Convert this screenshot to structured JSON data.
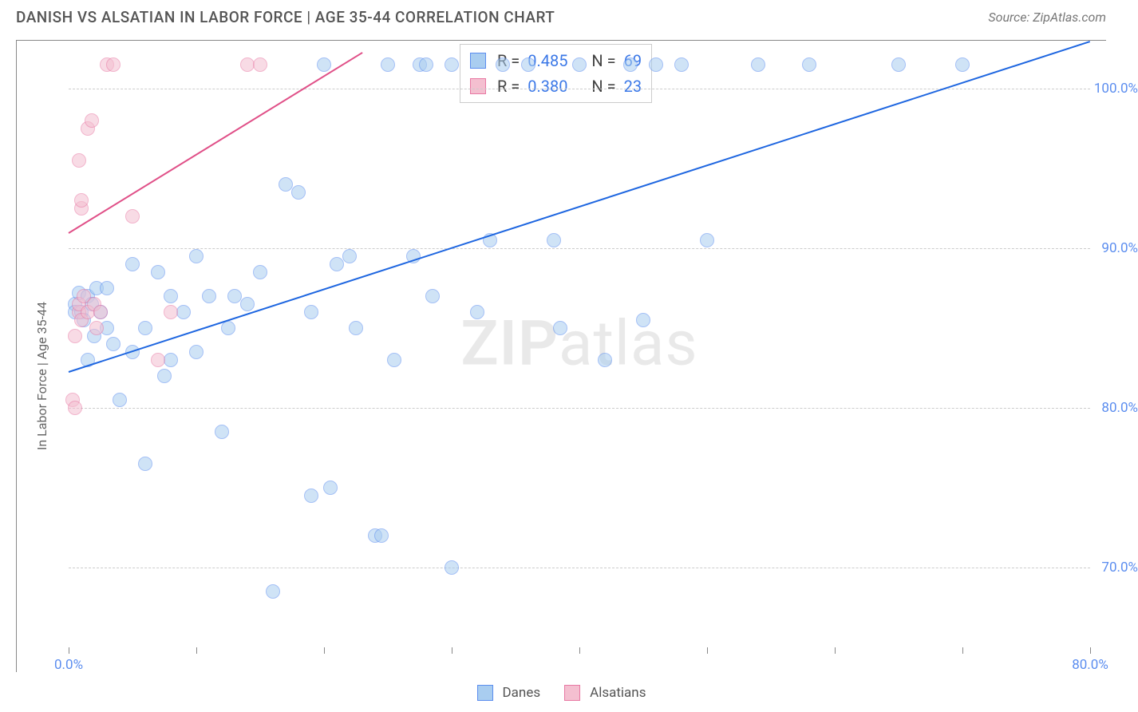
{
  "header": {
    "title": "DANISH VS ALSATIAN IN LABOR FORCE | AGE 35-44 CORRELATION CHART",
    "source": "Source: ZipAtlas.com"
  },
  "chart": {
    "type": "scatter",
    "xlim": [
      0,
      80
    ],
    "ylim": [
      65,
      103
    ],
    "x_ticks": [
      0,
      10,
      20,
      30,
      40,
      50,
      60,
      70,
      80
    ],
    "x_tick_labels": {
      "0": "0.0%",
      "80": "80.0%"
    },
    "y_ticks": [
      70,
      80,
      90,
      100
    ],
    "y_tick_labels": {
      "70": "70.0%",
      "80": "80.0%",
      "90": "90.0%",
      "100": "100.0%"
    },
    "ylabel": "In Labor Force | Age 35-44",
    "background_color": "#ffffff",
    "grid_color": "#cccccc",
    "watermark": "ZIPatlas",
    "series": [
      {
        "name": "Danes",
        "color_fill": "#a9cdf0",
        "color_stroke": "#5b8def",
        "trend_color": "#1e66e0",
        "R": "0.485",
        "N": "69",
        "marker_radius": 9,
        "marker_opacity": 0.55,
        "trend": {
          "x1": 0,
          "y1": 82.3,
          "x2": 80,
          "y2": 103
        },
        "points": [
          [
            0.5,
            86.5
          ],
          [
            0.5,
            86.0
          ],
          [
            0.8,
            87.2
          ],
          [
            1.0,
            86.0
          ],
          [
            1.2,
            85.5
          ],
          [
            1.5,
            87.0
          ],
          [
            1.5,
            83.0
          ],
          [
            1.8,
            86.5
          ],
          [
            2.0,
            84.5
          ],
          [
            2.2,
            87.5
          ],
          [
            2.5,
            86.0
          ],
          [
            3.0,
            87.5
          ],
          [
            3.0,
            85.0
          ],
          [
            3.5,
            84.0
          ],
          [
            4.0,
            80.5
          ],
          [
            5.0,
            89.0
          ],
          [
            5.0,
            83.5
          ],
          [
            6.0,
            85.0
          ],
          [
            6.0,
            76.5
          ],
          [
            7.0,
            88.5
          ],
          [
            7.5,
            82.0
          ],
          [
            8.0,
            87.0
          ],
          [
            8.0,
            83.0
          ],
          [
            9.0,
            86.0
          ],
          [
            10.0,
            83.5
          ],
          [
            10.0,
            89.5
          ],
          [
            11.0,
            87.0
          ],
          [
            12.0,
            78.5
          ],
          [
            12.5,
            85.0
          ],
          [
            13.0,
            87.0
          ],
          [
            14.0,
            86.5
          ],
          [
            15.0,
            88.5
          ],
          [
            16.0,
            68.5
          ],
          [
            17.0,
            94.0
          ],
          [
            18.0,
            93.5
          ],
          [
            19.0,
            74.5
          ],
          [
            19.0,
            86.0
          ],
          [
            20.0,
            101.5
          ],
          [
            20.5,
            75.0
          ],
          [
            21.0,
            89.0
          ],
          [
            22.0,
            89.5
          ],
          [
            22.5,
            85.0
          ],
          [
            24.0,
            72.0
          ],
          [
            24.5,
            72.0
          ],
          [
            25.0,
            101.5
          ],
          [
            25.5,
            83.0
          ],
          [
            27.0,
            89.5
          ],
          [
            27.5,
            101.5
          ],
          [
            28.0,
            101.5
          ],
          [
            28.5,
            87.0
          ],
          [
            30.0,
            101.5
          ],
          [
            30.0,
            70.0
          ],
          [
            32.0,
            86.0
          ],
          [
            33.0,
            90.5
          ],
          [
            34.0,
            101.5
          ],
          [
            36.0,
            101.5
          ],
          [
            38.0,
            90.5
          ],
          [
            38.5,
            85.0
          ],
          [
            40.0,
            101.5
          ],
          [
            42.0,
            83.0
          ],
          [
            44.0,
            101.5
          ],
          [
            46.0,
            101.5
          ],
          [
            48.0,
            101.5
          ],
          [
            50.0,
            90.5
          ],
          [
            54.0,
            101.5
          ],
          [
            58.0,
            101.5
          ],
          [
            65.0,
            101.5
          ],
          [
            70.0,
            101.5
          ],
          [
            45.0,
            85.5
          ]
        ]
      },
      {
        "name": "Alsatians",
        "color_fill": "#f4bfd0",
        "color_stroke": "#e878a3",
        "trend_color": "#e05088",
        "R": "0.380",
        "N": "23",
        "marker_radius": 9,
        "marker_opacity": 0.55,
        "trend": {
          "x1": 0,
          "y1": 91.0,
          "x2": 23,
          "y2": 102.3
        },
        "points": [
          [
            0.3,
            80.5
          ],
          [
            0.5,
            80.0
          ],
          [
            0.5,
            84.5
          ],
          [
            0.8,
            86.0
          ],
          [
            0.8,
            86.5
          ],
          [
            1.0,
            85.5
          ],
          [
            1.2,
            87.0
          ],
          [
            1.5,
            86.0
          ],
          [
            1.0,
            92.5
          ],
          [
            2.0,
            86.5
          ],
          [
            2.2,
            85.0
          ],
          [
            1.0,
            93.0
          ],
          [
            0.8,
            95.5
          ],
          [
            1.5,
            97.5
          ],
          [
            1.8,
            98.0
          ],
          [
            3.0,
            101.5
          ],
          [
            3.5,
            101.5
          ],
          [
            5.0,
            92.0
          ],
          [
            7.0,
            83.0
          ],
          [
            8.0,
            86.0
          ],
          [
            14.0,
            101.5
          ],
          [
            15.0,
            101.5
          ],
          [
            2.5,
            86.0
          ]
        ]
      }
    ],
    "legend_bottom": [
      {
        "label": "Danes",
        "fill": "#a9cdf0",
        "stroke": "#5b8def"
      },
      {
        "label": "Alsatians",
        "fill": "#f4bfd0",
        "stroke": "#e878a3"
      }
    ]
  }
}
